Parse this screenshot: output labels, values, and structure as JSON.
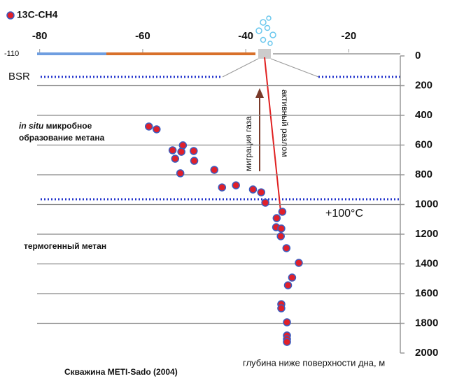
{
  "chart_data": {
    "type": "scatter",
    "legend_label": "13C-CH4",
    "x_left_label": "-110",
    "y_axis_label": "глубина ниже поверхности дна, м",
    "caption": "Скважина METI-Sado (2004)",
    "bsr_label": "BSR",
    "temp_label": "+100°C",
    "microbial_label": [
      "in situ",
      " микробное",
      "образование метана"
    ],
    "thermogenic_label": "термогенный метан",
    "migration_label": "миграция газа",
    "fault_label": "активный разлом",
    "xlim": [
      -80.5,
      -10
    ],
    "xticks": [
      -80,
      -60,
      -40,
      -20
    ],
    "ylim": [
      0,
      2000
    ],
    "yticks": [
      0,
      200,
      400,
      600,
      800,
      1000,
      1200,
      1400,
      1600,
      1800,
      2000
    ],
    "y_inverted": true,
    "grid": true,
    "series": [
      {
        "name": "13C-CH4",
        "color": "#e0202a",
        "edge_color": "#3a5cc0",
        "x": [
          -58.8,
          -57.3,
          -54.2,
          -52.2,
          -53.7,
          -52.5,
          -50.1,
          -50.0,
          -52.7,
          -46.1,
          -44.6,
          -41.9,
          -38.6,
          -37.0,
          -36.2,
          -32.9,
          -34.0,
          -34.1,
          -33.1,
          -33.2,
          -32.1,
          -29.7,
          -31.0,
          -31.8,
          -33.1,
          -33.1,
          -32.0,
          -32.0,
          -32.0,
          -32.0
        ],
        "values": [
          475,
          494,
          635,
          602,
          692,
          645,
          640,
          706,
          790,
          767,
          885,
          871,
          899,
          918,
          988,
          1049,
          1092,
          1153,
          1162,
          1214,
          1294,
          1393,
          1492,
          1544,
          1671,
          1699,
          1793,
          1882,
          1906,
          1925
        ]
      }
    ]
  }
}
